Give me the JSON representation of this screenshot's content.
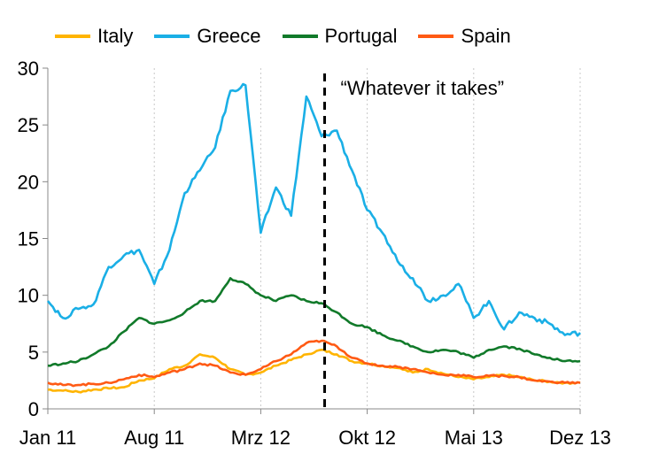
{
  "chart_data": {
    "type": "line",
    "title": "",
    "xlabel": "",
    "ylabel": "",
    "ylim": [
      0,
      30
    ],
    "yticks": [
      0,
      5,
      10,
      15,
      20,
      25,
      30
    ],
    "xticks": [
      "Jan 11",
      "Aug 11",
      "Mrz 12",
      "Okt 12",
      "Mai 13",
      "Dez 13"
    ],
    "grid": "vertical dotted",
    "legend_position": "top",
    "annotation": {
      "text": "“Whatever it takes”",
      "x": "Jul 12",
      "style": "dashed vertical line"
    },
    "x": [
      "Jan 11",
      "Feb 11",
      "Mar 11",
      "Apr 11",
      "May 11",
      "Jun 11",
      "Jul 11",
      "Aug 11",
      "Sep 11",
      "Oct 11",
      "Nov 11",
      "Dec 11",
      "Jan 12",
      "Feb 12",
      "Mar 12",
      "Apr 12",
      "May 12",
      "Jun 12",
      "Jul 12",
      "Aug 12",
      "Sep 12",
      "Oct 12",
      "Nov 12",
      "Dec 12",
      "Jan 13",
      "Feb 13",
      "Mar 13",
      "Apr 13",
      "May 13",
      "Jun 13",
      "Jul 13",
      "Aug 13",
      "Sep 13",
      "Oct 13",
      "Nov 13",
      "Dec 13"
    ],
    "series": [
      {
        "name": "Italy",
        "color": "#ffb400",
        "values": [
          1.7,
          1.6,
          1.5,
          1.7,
          1.8,
          1.9,
          2.5,
          2.7,
          3.5,
          3.8,
          4.8,
          4.5,
          3.5,
          3.0,
          3.2,
          3.8,
          4.3,
          4.8,
          5.2,
          4.8,
          4.2,
          4.0,
          3.8,
          3.6,
          3.2,
          3.5,
          3.1,
          2.8,
          2.6,
          2.8,
          3.0,
          2.8,
          2.5,
          2.4,
          2.3,
          2.3
        ]
      },
      {
        "name": "Greece",
        "color": "#1aafe6",
        "values": [
          9.5,
          8.0,
          8.8,
          9.2,
          12.5,
          13.5,
          14.0,
          11.0,
          14.0,
          19.0,
          21.0,
          23.0,
          28.0,
          28.5,
          15.5,
          19.5,
          17.0,
          27.5,
          24.0,
          24.5,
          21.0,
          17.5,
          15.5,
          13.0,
          11.5,
          9.5,
          10.0,
          11.0,
          8.0,
          9.5,
          7.0,
          8.5,
          8.0,
          7.5,
          6.5,
          6.7
        ]
      },
      {
        "name": "Portugal",
        "color": "#117a2a",
        "values": [
          3.8,
          4.0,
          4.2,
          4.8,
          5.5,
          6.8,
          8.0,
          7.5,
          7.8,
          8.5,
          9.5,
          9.5,
          11.5,
          11.0,
          10.0,
          9.5,
          10.0,
          9.5,
          9.3,
          8.5,
          7.5,
          7.2,
          6.5,
          6.0,
          5.5,
          5.0,
          5.2,
          5.0,
          4.5,
          5.2,
          5.5,
          5.3,
          4.8,
          4.5,
          4.2,
          4.2
        ]
      },
      {
        "name": "Spain",
        "color": "#ff5a14",
        "values": [
          2.3,
          2.1,
          2.1,
          2.2,
          2.3,
          2.6,
          3.0,
          2.8,
          3.2,
          3.5,
          4.0,
          3.8,
          3.2,
          3.0,
          3.5,
          4.2,
          4.8,
          5.8,
          6.0,
          5.5,
          4.5,
          4.0,
          3.8,
          3.7,
          3.5,
          3.2,
          3.0,
          3.0,
          2.8,
          2.9,
          2.9,
          2.8,
          2.5,
          2.4,
          2.3,
          2.3
        ]
      }
    ]
  }
}
